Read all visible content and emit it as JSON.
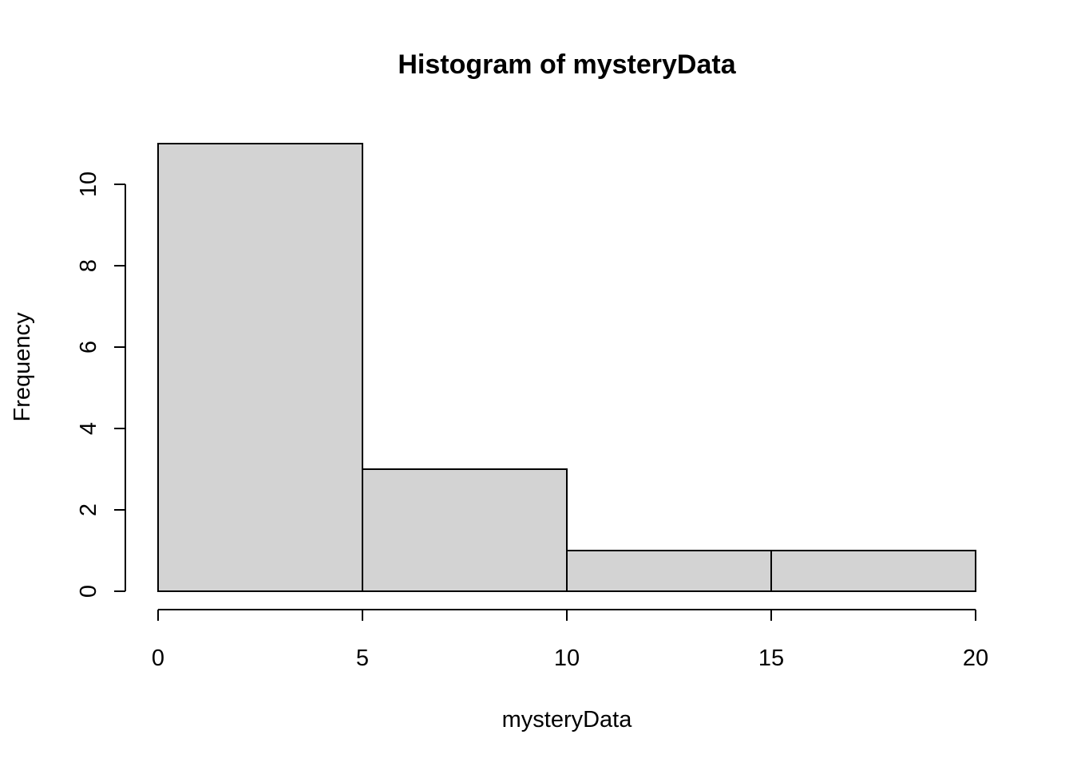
{
  "chart_data": {
    "type": "bar",
    "title": "Histogram of mysteryData",
    "xlabel": "mysteryData",
    "ylabel": "Frequency",
    "bins": [
      {
        "start": 0,
        "end": 5,
        "count": 11
      },
      {
        "start": 5,
        "end": 10,
        "count": 3
      },
      {
        "start": 10,
        "end": 15,
        "count": 1
      },
      {
        "start": 15,
        "end": 20,
        "count": 1
      }
    ],
    "xlim": [
      0,
      20
    ],
    "ylim": [
      0,
      11
    ],
    "x_ticks": [
      "0",
      "5",
      "10",
      "15",
      "20"
    ],
    "y_ticks": [
      "0",
      "2",
      "4",
      "6",
      "8",
      "10"
    ],
    "bar_color": "#d3d3d3",
    "grid": false,
    "legend": "none"
  }
}
